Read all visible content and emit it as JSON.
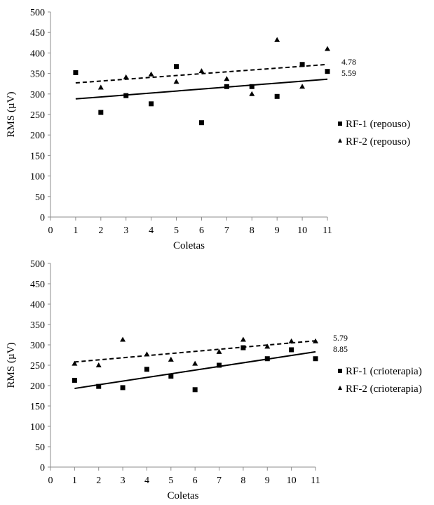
{
  "chart_data": [
    {
      "type": "scatter",
      "title": "",
      "xlabel": "Coletas",
      "ylabel": "RMS (µV)",
      "xlim": [
        0,
        11
      ],
      "ylim": [
        0,
        500
      ],
      "xticks": [
        "0",
        "1",
        "2",
        "3",
        "4",
        "5",
        "6",
        "7",
        "8",
        "9",
        "10",
        "11"
      ],
      "yticks": [
        "0",
        "50",
        "100",
        "150",
        "200",
        "250",
        "300",
        "350",
        "400",
        "450",
        "500"
      ],
      "grid": false,
      "legend_position": "right",
      "series": [
        {
          "name": "RF-1 (repouso)",
          "marker": "square",
          "x": [
            1,
            2,
            3,
            4,
            5,
            6,
            7,
            8,
            9,
            10,
            11
          ],
          "y": [
            352,
            255,
            296,
            276,
            367,
            230,
            318,
            318,
            294,
            372,
            355
          ]
        },
        {
          "name": "RF-2 (repouso)",
          "marker": "triangle",
          "x": [
            2,
            3,
            4,
            5,
            6,
            7,
            8,
            9,
            10,
            11
          ],
          "y": [
            316,
            341,
            348,
            330,
            356,
            337,
            300,
            432,
            318,
            410
          ]
        }
      ],
      "trendlines": [
        {
          "series": "RF-1 (repouso)",
          "style": "solid",
          "x": [
            1,
            11
          ],
          "y": [
            288,
            336
          ],
          "label": "5.59"
        },
        {
          "series": "RF-2 (repouso)",
          "style": "dashed",
          "x": [
            1,
            11
          ],
          "y": [
            327,
            372
          ],
          "label": "4.78"
        }
      ]
    },
    {
      "type": "scatter",
      "title": "",
      "xlabel": "Coletas",
      "ylabel": "RMS (µV)",
      "xlim": [
        0,
        11
      ],
      "ylim": [
        0,
        500
      ],
      "xticks": [
        "0",
        "1",
        "2",
        "3",
        "4",
        "5",
        "6",
        "7",
        "8",
        "9",
        "10",
        "11"
      ],
      "yticks": [
        "0",
        "50",
        "100",
        "150",
        "200",
        "250",
        "300",
        "350",
        "400",
        "450",
        "500"
      ],
      "grid": false,
      "legend_position": "right",
      "series": [
        {
          "name": "RF-1 (crioterapia)",
          "marker": "square",
          "x": [
            1,
            2,
            3,
            4,
            5,
            6,
            7,
            8,
            9,
            10,
            11
          ],
          "y": [
            213,
            198,
            195,
            240,
            223,
            190,
            250,
            293,
            266,
            288,
            266
          ]
        },
        {
          "name": "RF-2 (crioterapia)",
          "marker": "triangle",
          "x": [
            1,
            2,
            3,
            4,
            5,
            6,
            7,
            8,
            9,
            10,
            11
          ],
          "y": [
            254,
            250,
            313,
            277,
            264,
            254,
            283,
            313,
            296,
            309,
            309
          ]
        }
      ],
      "trendlines": [
        {
          "series": "RF-1 (crioterapia)",
          "style": "solid",
          "x": [
            1,
            11
          ],
          "y": [
            193,
            283
          ],
          "label": "8.85"
        },
        {
          "series": "RF-2 (crioterapia)",
          "style": "dashed",
          "x": [
            1,
            11
          ],
          "y": [
            258,
            310
          ],
          "label": "5.79"
        }
      ]
    }
  ]
}
